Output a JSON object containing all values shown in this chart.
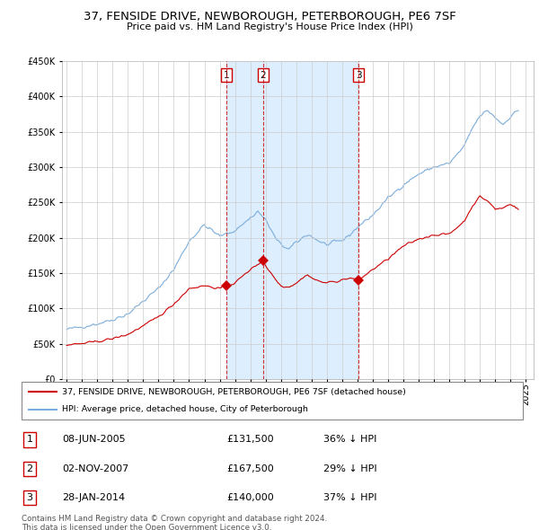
{
  "title": "37, FENSIDE DRIVE, NEWBOROUGH, PETERBOROUGH, PE6 7SF",
  "subtitle": "Price paid vs. HM Land Registry's House Price Index (HPI)",
  "ylim": [
    0,
    450000
  ],
  "yticks": [
    0,
    50000,
    100000,
    150000,
    200000,
    250000,
    300000,
    350000,
    400000,
    450000
  ],
  "background_color": "#ffffff",
  "grid_color": "#cccccc",
  "red_color": "#cc0000",
  "blue_color": "#7aaddb",
  "shade_color": "#ddeeff",
  "transactions": [
    {
      "num": 1,
      "year": 2005.44,
      "price": 131500,
      "label": "08-JUN-2005",
      "price_str": "£131,500",
      "pct": "36% ↓ HPI"
    },
    {
      "num": 2,
      "year": 2007.83,
      "price": 167500,
      "label": "02-NOV-2007",
      "price_str": "£167,500",
      "pct": "29% ↓ HPI"
    },
    {
      "num": 3,
      "year": 2014.07,
      "price": 140000,
      "label": "28-JAN-2014",
      "price_str": "£140,000",
      "pct": "37% ↓ HPI"
    }
  ],
  "legend_label_red": "37, FENSIDE DRIVE, NEWBOROUGH, PETERBOROUGH, PE6 7SF (detached house)",
  "legend_label_blue": "HPI: Average price, detached house, City of Peterborough",
  "footer1": "Contains HM Land Registry data © Crown copyright and database right 2024.",
  "footer2": "This data is licensed under the Open Government Licence v3.0."
}
